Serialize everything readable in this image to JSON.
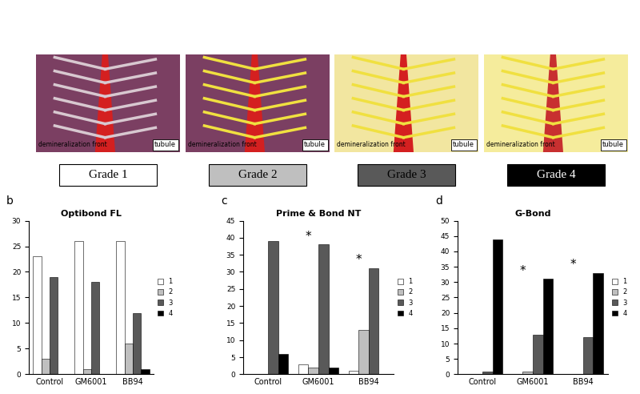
{
  "figure": {
    "illustrations": [
      {
        "labels": [
          "demineralization front",
          "tubule"
        ]
      },
      {
        "labels": [
          "demineralization front",
          "tubule"
        ]
      },
      {
        "labels": [
          "demineralization front",
          "tubule"
        ]
      },
      {
        "labels": [
          "demineralization front",
          "tubule"
        ]
      }
    ],
    "grades": [
      {
        "label": "Grade 1",
        "color": "#ffffff"
      },
      {
        "label": "Grade 2",
        "color": "#bfbfbf"
      },
      {
        "label": "Grade 3",
        "color": "#595959"
      },
      {
        "label": "Grade 4",
        "color": "#000000"
      }
    ]
  },
  "chart_data": [
    {
      "type": "bar",
      "panel": "b",
      "title": "Optibond FL",
      "categories": [
        "Control",
        "GM6001",
        "BB94"
      ],
      "series": [
        {
          "name": "1",
          "color": "#ffffff",
          "values": [
            23,
            26,
            26
          ]
        },
        {
          "name": "2",
          "color": "#bfbfbf",
          "values": [
            3,
            1,
            6
          ]
        },
        {
          "name": "3",
          "color": "#595959",
          "values": [
            19,
            18,
            12
          ]
        },
        {
          "name": "4",
          "color": "#000000",
          "values": [
            0,
            0,
            1
          ]
        }
      ],
      "ylim": [
        0,
        30
      ],
      "yticks": [
        0,
        5,
        10,
        15,
        20,
        25,
        30
      ],
      "grid": false,
      "legend": "right",
      "annotations": []
    },
    {
      "type": "bar",
      "panel": "c",
      "title": "Prime & Bond NT",
      "categories": [
        "Control",
        "GM6001",
        "BB94"
      ],
      "series": [
        {
          "name": "1",
          "color": "#ffffff",
          "values": [
            0,
            3,
            1
          ]
        },
        {
          "name": "2",
          "color": "#bfbfbf",
          "values": [
            0,
            2,
            13
          ]
        },
        {
          "name": "3",
          "color": "#595959",
          "values": [
            39,
            38,
            31
          ]
        },
        {
          "name": "4",
          "color": "#000000",
          "values": [
            6,
            2,
            0
          ]
        }
      ],
      "ylim": [
        0,
        45
      ],
      "yticks": [
        0,
        5,
        10,
        15,
        20,
        25,
        30,
        35,
        40,
        45
      ],
      "grid": false,
      "legend": "right",
      "annotations": [
        {
          "text": "*",
          "category": "GM6001"
        },
        {
          "text": "*",
          "category": "BB94"
        }
      ]
    },
    {
      "type": "bar",
      "panel": "d",
      "title": "G-Bond",
      "categories": [
        "Control",
        "GM6001",
        "BB94"
      ],
      "series": [
        {
          "name": "1",
          "color": "#ffffff",
          "values": [
            0,
            0,
            0
          ]
        },
        {
          "name": "2",
          "color": "#bfbfbf",
          "values": [
            0,
            1,
            0
          ]
        },
        {
          "name": "3",
          "color": "#595959",
          "values": [
            1,
            13,
            12
          ]
        },
        {
          "name": "4",
          "color": "#000000",
          "values": [
            44,
            31,
            33
          ]
        }
      ],
      "ylim": [
        0,
        50
      ],
      "yticks": [
        0,
        5,
        10,
        15,
        20,
        25,
        30,
        35,
        40,
        45,
        50
      ],
      "grid": false,
      "legend": "right",
      "annotations": [
        {
          "text": "*",
          "category": "GM6001"
        },
        {
          "text": "*",
          "category": "BB94"
        }
      ]
    }
  ]
}
